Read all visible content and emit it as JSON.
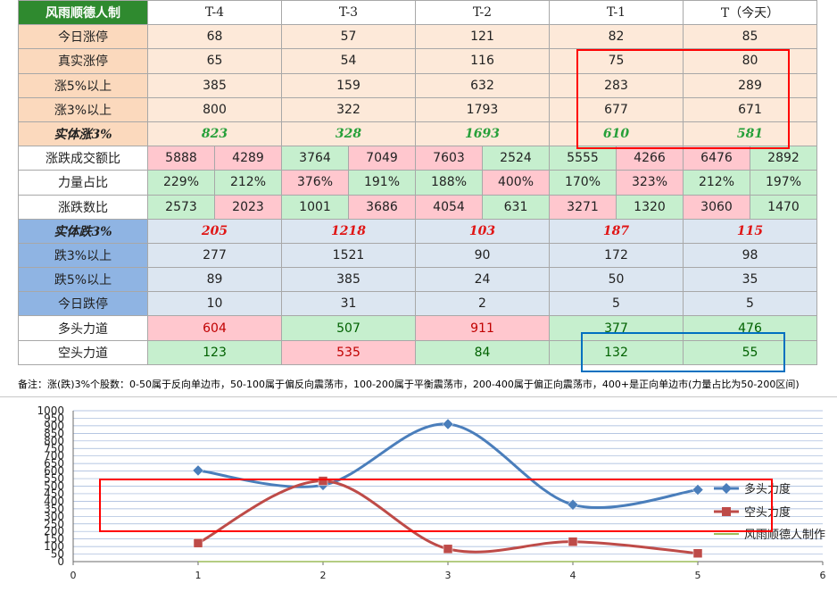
{
  "table": {
    "corner": "风雨顺德人制",
    "columns": [
      "T-4",
      "T-3",
      "T-2",
      "T-1",
      "T（今天）"
    ],
    "rows_top": [
      {
        "label": "今日涨停",
        "values": [
          "68",
          "57",
          "121",
          "82",
          "85"
        ]
      },
      {
        "label": "真实涨停",
        "values": [
          "65",
          "54",
          "116",
          "75",
          "80"
        ]
      },
      {
        "label": "涨5%以上",
        "values": [
          "385",
          "159",
          "632",
          "283",
          "289"
        ]
      },
      {
        "label": "涨3%以上",
        "values": [
          "800",
          "322",
          "1793",
          "677",
          "671"
        ]
      },
      {
        "label": "实体涨3%",
        "values": [
          "823",
          "328",
          "1693",
          "610",
          "581"
        ]
      }
    ],
    "rows_pair": [
      {
        "label": "涨跌成交额比",
        "values": [
          [
            "5888",
            "4289"
          ],
          [
            "3764",
            "7049"
          ],
          [
            "7603",
            "2524"
          ],
          [
            "5555",
            "4266"
          ],
          [
            "6476",
            "2892"
          ]
        ]
      },
      {
        "label": "力量占比",
        "values": [
          [
            "229%",
            "212%"
          ],
          [
            "376%",
            "191%"
          ],
          [
            "188%",
            "400%"
          ],
          [
            "170%",
            "323%"
          ],
          [
            "212%",
            "197%"
          ]
        ]
      },
      {
        "label": "涨跌数比",
        "values": [
          [
            "2573",
            "2023"
          ],
          [
            "1001",
            "3686"
          ],
          [
            "4054",
            "631"
          ],
          [
            "3271",
            "1320"
          ],
          [
            "3060",
            "1470"
          ]
        ]
      }
    ],
    "rows_bottom": [
      {
        "label": "实体跌3%",
        "values": [
          "205",
          "1218",
          "103",
          "187",
          "115"
        ]
      },
      {
        "label": "跌3%以上",
        "values": [
          "277",
          "1521",
          "90",
          "172",
          "98"
        ]
      },
      {
        "label": "跌5%以上",
        "values": [
          "89",
          "385",
          "24",
          "50",
          "35"
        ]
      },
      {
        "label": "今日跌停",
        "values": [
          "10",
          "31",
          "2",
          "5",
          "5"
        ]
      }
    ],
    "rows_force": [
      {
        "label": "多头力道",
        "values": [
          "604",
          "507",
          "911",
          "377",
          "476"
        ]
      },
      {
        "label": "空头力道",
        "values": [
          "123",
          "535",
          "84",
          "132",
          "55"
        ]
      }
    ]
  },
  "note": "备注：涨(跌)3%个股数：0-50属于反向单边市，50-100属于偏反向震荡市，100-200属于平衡震荡市，200-400属于偏正向震荡市，400+是正向单边市(力量占比为50-200区间)",
  "colors": {
    "series_bull": "#4a7ebb",
    "series_bear": "#be4b48",
    "series_third": "#9bbb59",
    "highlight_red": "#ff0000",
    "highlight_blue": "#0070c0"
  },
  "chart_data": {
    "type": "line",
    "smooth": true,
    "x": [
      1,
      2,
      3,
      4,
      5
    ],
    "xlim": [
      0,
      6
    ],
    "ylim": [
      0,
      1000
    ],
    "xticks": [
      "0",
      "1",
      "2",
      "3",
      "4",
      "5",
      "6"
    ],
    "yticks": [
      "0",
      "50",
      "100",
      "150",
      "200",
      "250",
      "300",
      "350",
      "400",
      "450",
      "500",
      "550",
      "600",
      "650",
      "700",
      "750",
      "800",
      "850",
      "900",
      "950",
      "1000"
    ],
    "grid": true,
    "legend_position": "right",
    "series": [
      {
        "name": "多头力度",
        "values": [
          604,
          507,
          911,
          377,
          476
        ],
        "marker": "diamond"
      },
      {
        "name": "空头力度",
        "values": [
          123,
          535,
          84,
          132,
          55
        ],
        "marker": "square"
      },
      {
        "name": "风雨顺德人制作",
        "values": [
          0,
          0,
          0,
          0,
          0
        ],
        "marker": "none"
      }
    ]
  }
}
